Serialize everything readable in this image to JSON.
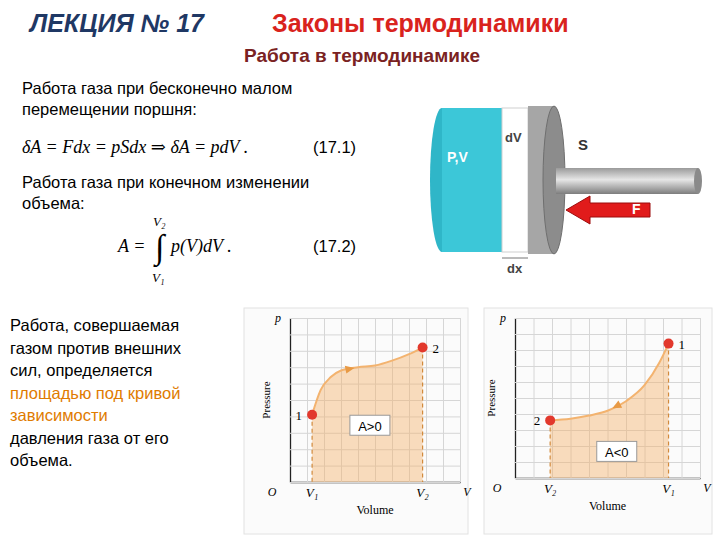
{
  "header": {
    "lecture": "ЛЕКЦИЯ № 17",
    "title": "Законы термодинамики",
    "subtitle": "Работа в термодинамике"
  },
  "formulas": {
    "intro1": [
      "Работа газа при бесконечно малом",
      "перемещении поршня:"
    ],
    "f1": {
      "text": "δA = Fdx = pSdx ⇒ δA = pdV .",
      "number": "(17.1)"
    },
    "intro2": [
      "Работа газа при конечном изменении",
      "объема:"
    ],
    "f2": {
      "lhs": "A = ",
      "integral": "∫",
      "upper": "V₂",
      "lower": "V₁",
      "integrand": "p(V)dV .",
      "number": "(17.2)"
    }
  },
  "diagram": {
    "labels": {
      "state": "P,V",
      "dv": "dV",
      "area": "S",
      "force": "F",
      "dx": "dx"
    }
  },
  "explanation": [
    "Работа, совершаемая",
    "газом против внешних",
    "сил, определяется",
    "площадью под кривой",
    "зависимости",
    "давления газа от его",
    "объема."
  ],
  "chart_data": [
    {
      "type": "area",
      "xlabel": "Volume",
      "ylabel": "Pressure",
      "x_axis_name": "V",
      "y_axis_name": "p",
      "origin_label": "O",
      "series": [
        {
          "color": "#f3b36f",
          "x": [
            1.3,
            1.8,
            2.4,
            3.0,
            4.0,
            5.0,
            6.0,
            7.0,
            7.8
          ],
          "values": [
            4.1,
            5.6,
            6.4,
            6.8,
            7.0,
            7.1,
            7.4,
            7.8,
            8.2
          ]
        }
      ],
      "endpoints": [
        {
          "label": "1",
          "x": 1.3,
          "y": 4.1
        },
        {
          "label": "2",
          "x": 7.8,
          "y": 8.2
        }
      ],
      "x_markers": [
        {
          "value": 1.3,
          "label": "V₁"
        },
        {
          "value": 7.8,
          "label": "V₂"
        }
      ],
      "area_label": {
        "text": "A>0",
        "x": 4.7,
        "y": 3.4
      },
      "xlim": [
        0,
        10
      ],
      "ylim": [
        0,
        10
      ],
      "xticks": [
        0,
        1,
        2,
        3,
        4,
        5,
        6,
        7,
        8,
        9,
        10
      ],
      "yticks": [
        0,
        1,
        2,
        3,
        4,
        5,
        6,
        7,
        8,
        9,
        10
      ],
      "grid": true,
      "tick_labels": false
    },
    {
      "type": "area",
      "xlabel": "Volume",
      "ylabel": "Pressure",
      "x_axis_name": "V",
      "y_axis_name": "p",
      "origin_label": "O",
      "series": [
        {
          "color": "#f3b36f",
          "x": [
            8.3,
            7.8,
            7.0,
            6.0,
            5.0,
            4.0,
            3.0,
            1.9
          ],
          "values": [
            8.4,
            7.2,
            5.8,
            4.8,
            4.2,
            3.9,
            3.7,
            3.6
          ]
        }
      ],
      "endpoints": [
        {
          "label": "1",
          "x": 8.3,
          "y": 8.4
        },
        {
          "label": "2",
          "x": 1.9,
          "y": 3.6
        }
      ],
      "x_markers": [
        {
          "value": 1.9,
          "label": "V₂"
        },
        {
          "value": 8.3,
          "label": "V₁"
        }
      ],
      "area_label": {
        "text": "A<0",
        "x": 5.5,
        "y": 1.6
      },
      "xlim": [
        0,
        10
      ],
      "ylim": [
        0,
        10
      ],
      "xticks": [
        0,
        1,
        2,
        3,
        4,
        5,
        6,
        7,
        8,
        9,
        10
      ],
      "yticks": [
        0,
        1,
        2,
        3,
        4,
        5,
        6,
        7,
        8,
        9,
        10
      ],
      "grid": true,
      "tick_labels": false
    }
  ]
}
